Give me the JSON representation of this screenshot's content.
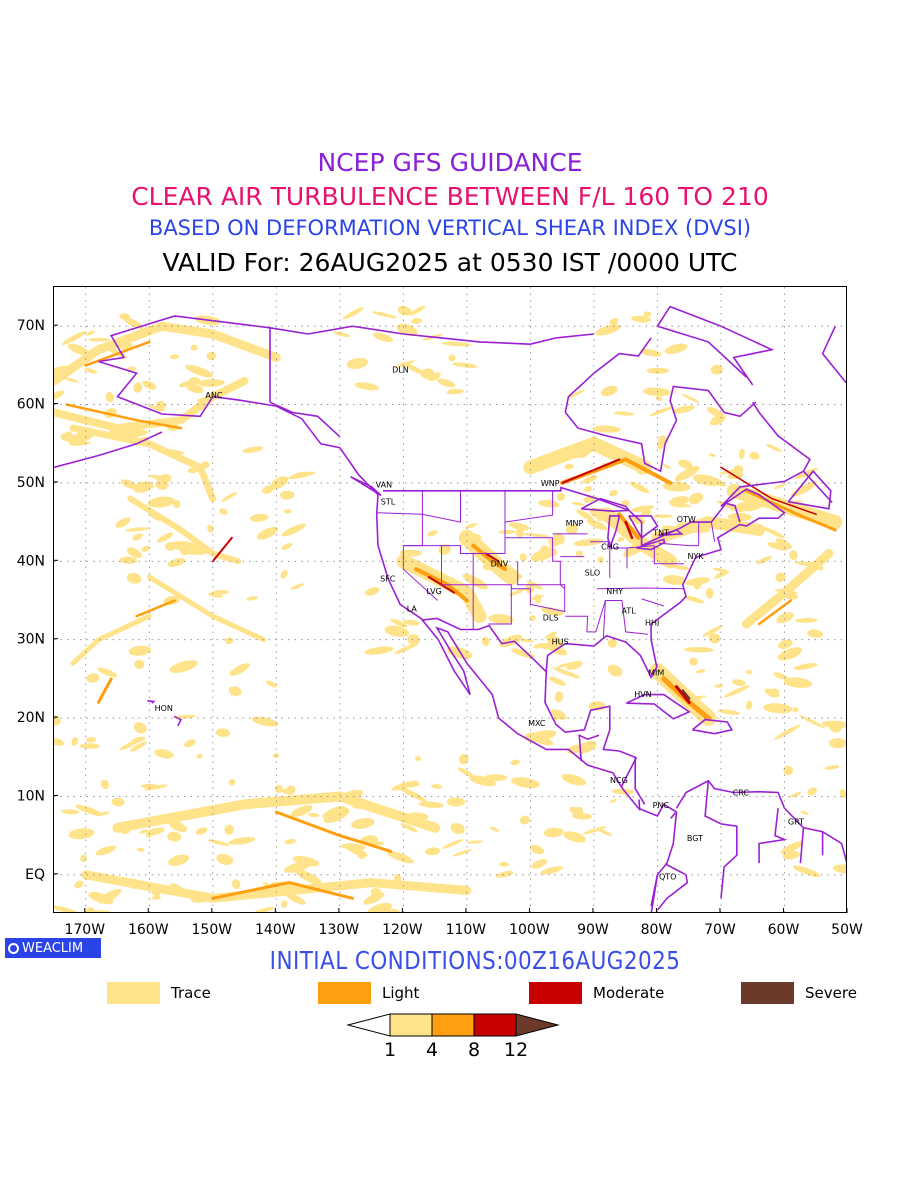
{
  "title": {
    "line1": "NCEP GFS GUIDANCE",
    "line2": "CLEAR AIR TURBULENCE BETWEEN F/L 160 TO 210",
    "line3": "BASED ON DEFORMATION VERTICAL SHEAR INDEX (DVSI)",
    "line4": "VALID For: 26AUG2025 at 0530 IST /0000 UTC"
  },
  "colors": {
    "title1": "#8a1fd6",
    "title2": "#e8126e",
    "title3": "#2a44e8",
    "initcond": "#3a4ee8",
    "border": "#9b1fd3",
    "trace": "#ffe38a",
    "light": "#ff9f0f",
    "moderate": "#c80000",
    "severe": "#6b3a2a"
  },
  "map": {
    "projection": "lat-lon",
    "lon_range": [
      -175,
      -50
    ],
    "lat_range": [
      -5,
      75
    ],
    "lon_ticks": [
      "170W",
      "160W",
      "150W",
      "140W",
      "130W",
      "120W",
      "110W",
      "100W",
      "90W",
      "80W",
      "70W",
      "60W",
      "50W"
    ],
    "lat_ticks": [
      "70N",
      "60N",
      "50N",
      "40N",
      "30N",
      "20N",
      "10N",
      "EQ"
    ],
    "gridlines": "dotted",
    "stations": [
      {
        "code": "DLN",
        "lon": -120.5,
        "lat": 64.5
      },
      {
        "code": "ANC",
        "lon": -149.9,
        "lat": 61.2
      },
      {
        "code": "VAN",
        "lon": -123.1,
        "lat": 49.8
      },
      {
        "code": "STL",
        "lon": -122.3,
        "lat": 47.6
      },
      {
        "code": "WNP",
        "lon": -97.1,
        "lat": 50.0
      },
      {
        "code": "MNP",
        "lon": -93.2,
        "lat": 44.9
      },
      {
        "code": "OTW",
        "lon": -75.7,
        "lat": 45.4
      },
      {
        "code": "TNT",
        "lon": -79.4,
        "lat": 43.7
      },
      {
        "code": "CHG",
        "lon": -87.6,
        "lat": 41.9
      },
      {
        "code": "NYK",
        "lon": -74.0,
        "lat": 40.7
      },
      {
        "code": "DNV",
        "lon": -105.0,
        "lat": 39.7
      },
      {
        "code": "SFC",
        "lon": -122.4,
        "lat": 37.8
      },
      {
        "code": "LVG",
        "lon": -115.1,
        "lat": 36.2
      },
      {
        "code": "SLO",
        "lon": -90.2,
        "lat": 38.6
      },
      {
        "code": "LA",
        "lon": -118.2,
        "lat": 34.0
      },
      {
        "code": "NHY",
        "lon": -86.8,
        "lat": 36.2
      },
      {
        "code": "ATL",
        "lon": -84.4,
        "lat": 33.7
      },
      {
        "code": "DLS",
        "lon": -96.8,
        "lat": 32.8
      },
      {
        "code": "HHI",
        "lon": -80.7,
        "lat": 32.2
      },
      {
        "code": "HUS",
        "lon": -95.4,
        "lat": 29.8
      },
      {
        "code": "MIM",
        "lon": -80.2,
        "lat": 25.8
      },
      {
        "code": "HVN",
        "lon": -82.4,
        "lat": 23.1
      },
      {
        "code": "HON",
        "lon": -157.9,
        "lat": 21.3
      },
      {
        "code": "MXC",
        "lon": -99.1,
        "lat": 19.4
      },
      {
        "code": "NCG",
        "lon": -86.2,
        "lat": 12.1
      },
      {
        "code": "CRC",
        "lon": -66.9,
        "lat": 10.5
      },
      {
        "code": "PNC",
        "lon": -79.5,
        "lat": 8.9
      },
      {
        "code": "GRT",
        "lon": -58.2,
        "lat": 6.8
      },
      {
        "code": "BGT",
        "lon": -74.1,
        "lat": 4.7
      },
      {
        "code": "QTO",
        "lon": -78.5,
        "lat": -0.2
      }
    ]
  },
  "initial_conditions": "INITIAL CONDITIONS:00Z16AUG2025",
  "badge": {
    "label": "WEACLIM",
    "icon": "circle-logo-icon"
  },
  "legend": [
    {
      "label": "Trace",
      "color": "#ffe38a"
    },
    {
      "label": "Light",
      "color": "#ff9f0f"
    },
    {
      "label": "Moderate",
      "color": "#c80000"
    },
    {
      "label": "Severe",
      "color": "#6b3a2a"
    }
  ],
  "colorbar": {
    "ticks": [
      "1",
      "4",
      "8",
      "12"
    ],
    "colors": [
      "#ffffff",
      "#ffe38a",
      "#ff9f0f",
      "#c80000",
      "#6b3a2a"
    ]
  }
}
